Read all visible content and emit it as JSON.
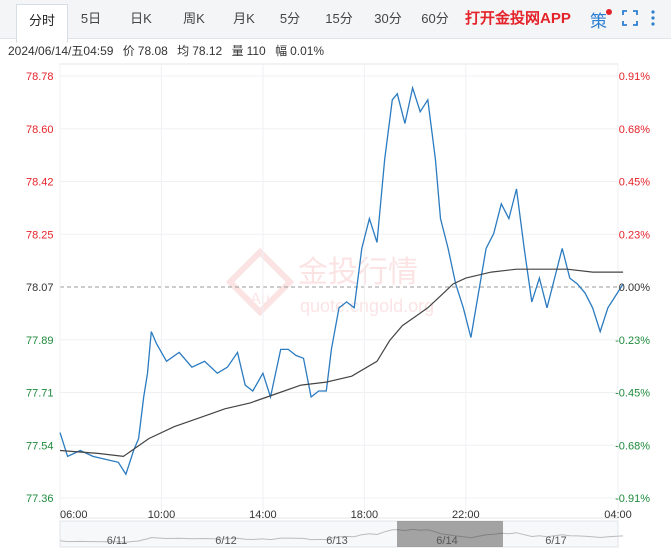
{
  "tabs": [
    {
      "label": "分时",
      "active": true
    },
    {
      "label": "5日"
    },
    {
      "label": "日K"
    },
    {
      "label": "周K"
    },
    {
      "label": "月K"
    },
    {
      "label": "5分"
    },
    {
      "label": "15分"
    },
    {
      "label": "30分"
    },
    {
      "label": "60分"
    }
  ],
  "app_link": "打开金投网APP",
  "strategy_label": "策",
  "info": {
    "datetime": "2024/06/14/五04:59",
    "price_label": "价",
    "price": "78.08",
    "avg_label": "均",
    "avg": "78.12",
    "volume_label": "量",
    "volume": "110",
    "range_label": "幅",
    "range": "0.01%"
  },
  "watermark": {
    "cn": "金投行情",
    "en": "quote.cngold.org",
    "logo": "Au"
  },
  "colors": {
    "up": "#e4232a",
    "down": "#1f8a3c",
    "neutral": "#333333",
    "price_line": "#2b7bc0",
    "avg_line": "#444444"
  },
  "chart_data": {
    "type": "line",
    "y_ticks_left": [
      "78.78",
      "78.60",
      "78.42",
      "78.25",
      "78.07",
      "77.89",
      "77.71",
      "77.54",
      "77.36"
    ],
    "y_ticks_right": [
      "0.91%",
      "0.68%",
      "0.45%",
      "0.23%",
      "0.00%",
      "-0.23%",
      "-0.45%",
      "-0.68%",
      "-0.91%"
    ],
    "ylim": [
      77.36,
      78.78
    ],
    "base_price": 78.07,
    "x_ticks": [
      "06:00",
      "10:00",
      "14:00",
      "18:00",
      "22:00",
      "04:00"
    ],
    "x_tick_hours": [
      6,
      10,
      14,
      18,
      22,
      28
    ],
    "xlim": [
      6,
      28
    ],
    "series": [
      {
        "x": [
          6,
          6.3,
          6.8,
          7.3,
          7.8,
          8.3,
          8.6,
          8.9,
          9.1,
          9.3,
          9.45,
          9.6,
          9.8,
          10.2,
          10.7,
          11.2,
          11.7,
          12.2,
          12.6,
          13.0,
          13.3,
          13.6,
          14.0,
          14.3,
          14.7,
          15.0,
          15.3,
          15.6,
          15.9,
          16.2,
          16.5,
          16.7,
          17.0,
          17.3,
          17.6,
          17.9,
          18.2,
          18.5,
          18.8,
          19.1,
          19.3,
          19.6,
          19.9,
          20.2,
          20.5,
          20.8,
          21.0,
          21.3,
          21.6,
          21.9,
          22.2,
          22.5,
          22.8,
          23.1,
          23.4,
          23.7,
          24.0,
          24.3,
          24.6,
          24.9,
          25.2,
          25.5,
          25.8,
          26.1,
          26.4,
          26.7,
          27.0,
          27.3,
          27.6,
          28.2
        ],
        "values": [
          77.58,
          77.5,
          77.52,
          77.5,
          77.49,
          77.48,
          77.44,
          77.52,
          77.56,
          77.7,
          77.78,
          77.92,
          77.88,
          77.82,
          77.85,
          77.8,
          77.82,
          77.78,
          77.8,
          77.85,
          77.74,
          77.72,
          77.78,
          77.7,
          77.86,
          77.86,
          77.84,
          77.83,
          77.7,
          77.72,
          77.72,
          77.86,
          78.0,
          78.02,
          78.0,
          78.2,
          78.3,
          78.22,
          78.5,
          78.7,
          78.72,
          78.62,
          78.74,
          78.66,
          78.7,
          78.5,
          78.3,
          78.2,
          78.08,
          78.0,
          77.9,
          78.05,
          78.2,
          78.25,
          78.35,
          78.3,
          78.4,
          78.2,
          78.02,
          78.1,
          78.0,
          78.1,
          78.2,
          78.1,
          78.08,
          78.05,
          78.0,
          77.92,
          78.0,
          78.08
        ]
      },
      {
        "x": [
          6,
          7.5,
          8.5,
          9.5,
          10.5,
          11.5,
          12.5,
          13.5,
          14.5,
          15.5,
          16.5,
          17.5,
          18.5,
          19.0,
          19.5,
          20.0,
          20.5,
          21.0,
          21.5,
          22.0,
          22.5,
          23.0,
          24.0,
          25.0,
          26.0,
          27.0,
          28.2
        ],
        "values": [
          77.52,
          77.51,
          77.5,
          77.56,
          77.6,
          77.63,
          77.66,
          77.68,
          77.71,
          77.74,
          77.75,
          77.77,
          77.82,
          77.89,
          77.94,
          77.97,
          78.0,
          78.04,
          78.08,
          78.1,
          78.11,
          78.12,
          78.13,
          78.13,
          78.13,
          78.12,
          78.12
        ]
      }
    ],
    "navigator_dates": [
      "6/11",
      "6/12",
      "6/13",
      "6/14",
      "6/17"
    ]
  }
}
